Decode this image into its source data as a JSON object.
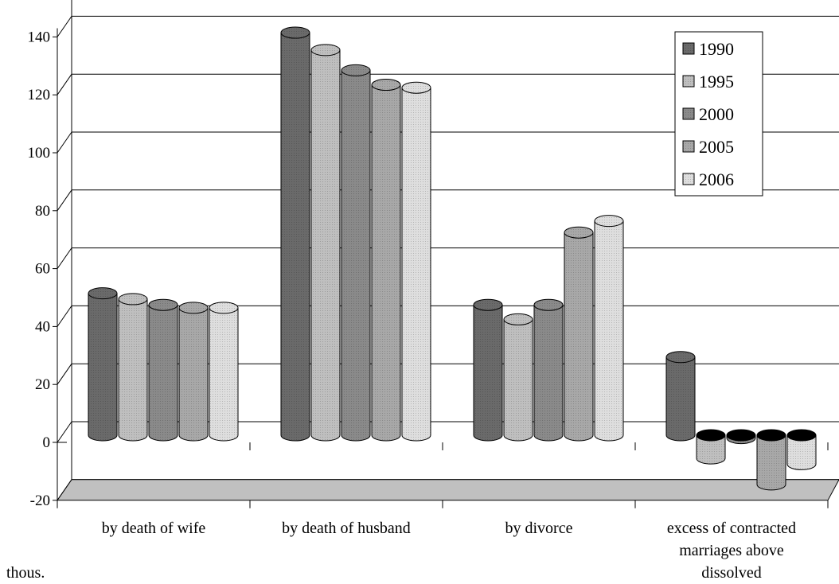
{
  "chart_data": {
    "type": "bar",
    "title": "",
    "xlabel": "",
    "ylabel": "",
    "unit_label": "thous.",
    "ylim": [
      -20,
      140
    ],
    "ytick_step": 20,
    "grid": true,
    "legend_position": "top-right",
    "categories": [
      [
        "by death of wife"
      ],
      [
        "by death of husband"
      ],
      [
        "by divorce"
      ],
      [
        "excess of contracted",
        "marriages above",
        "dissolved"
      ]
    ],
    "series": [
      {
        "name": "1990",
        "values": [
          49,
          139,
          45,
          27
        ],
        "color": "#6a6a6a"
      },
      {
        "name": "1995",
        "values": [
          47,
          133,
          40,
          -8
        ],
        "color": "#bfbfbf"
      },
      {
        "name": "2000",
        "values": [
          45,
          126,
          45,
          -1
        ],
        "color": "#8a8a8a"
      },
      {
        "name": "2005",
        "values": [
          44,
          121,
          70,
          -17
        ],
        "color": "#a8a8a8"
      },
      {
        "name": "2006",
        "values": [
          44,
          120,
          74,
          -10
        ],
        "color": "#dedede"
      }
    ]
  }
}
